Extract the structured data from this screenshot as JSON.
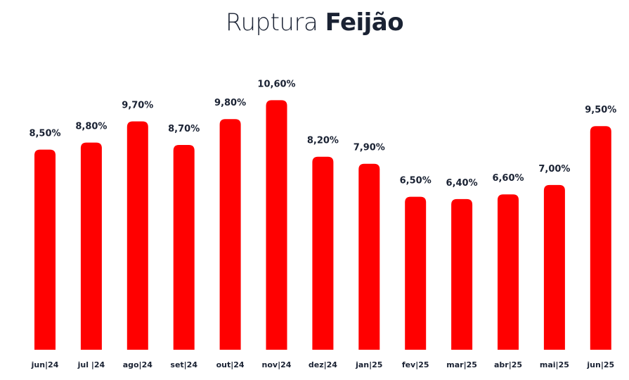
{
  "chart_data": {
    "type": "bar",
    "title_light": "Ruptura",
    "title_bold": "Feijão",
    "categories": [
      "jun|24",
      "jul |24",
      "ago|24",
      "set|24",
      "out|24",
      "nov|24",
      "dez|24",
      "jan|25",
      "fev|25",
      "mar|25",
      "abr|25",
      "mai|25",
      "jun|25"
    ],
    "values": [
      8.5,
      8.8,
      9.7,
      8.7,
      9.8,
      10.6,
      8.2,
      7.9,
      6.5,
      6.4,
      6.6,
      7.0,
      9.5
    ],
    "value_labels": [
      "8,50%",
      "8,80%",
      "9,70%",
      "8,70%",
      "9,80%",
      "10,60%",
      "8,20%",
      "7,90%",
      "6,50%",
      "6,40%",
      "6,60%",
      "7,00%",
      "9,50%"
    ],
    "bar_color": "#ff0000",
    "grid": false,
    "legend": "none"
  }
}
